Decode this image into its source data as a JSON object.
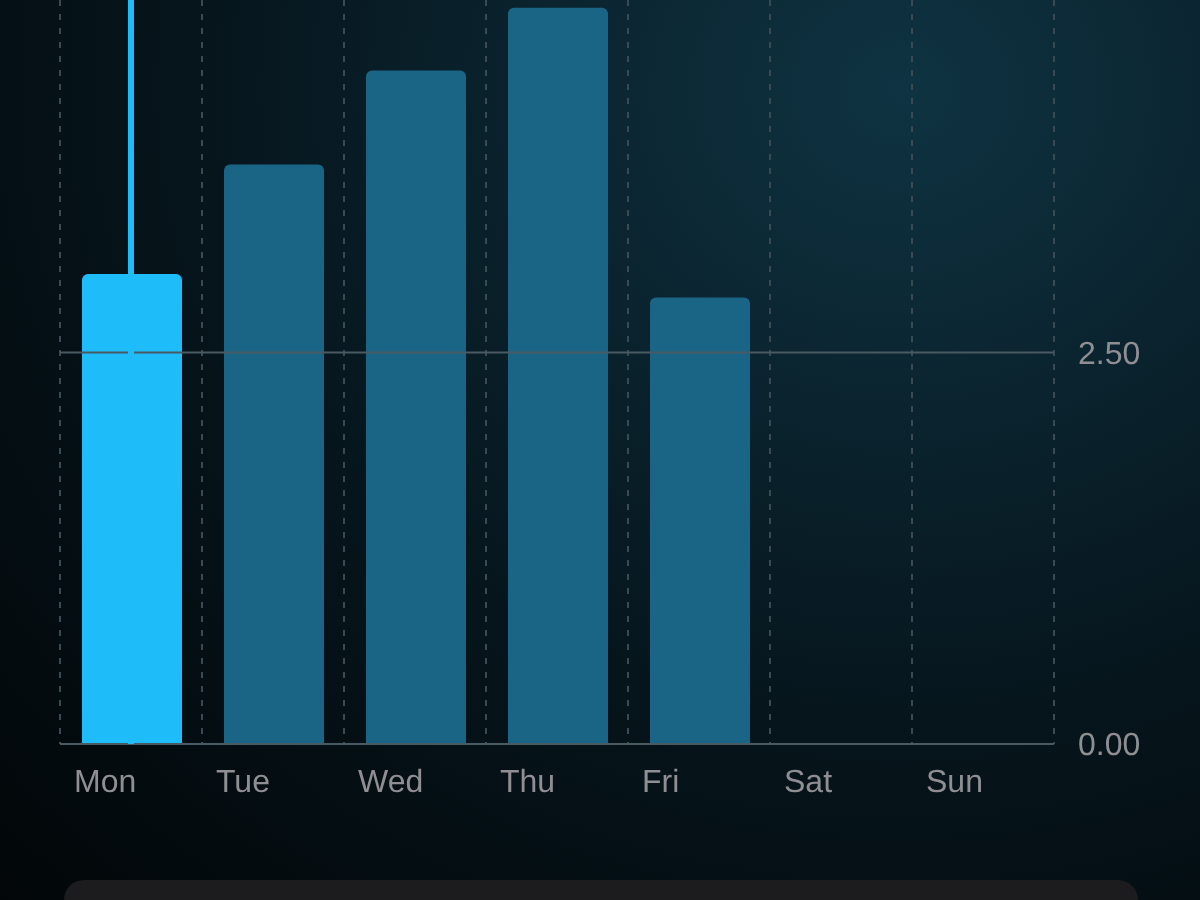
{
  "chart_data": {
    "type": "bar",
    "categories": [
      "Mon",
      "Tue",
      "Wed",
      "Thu",
      "Fri",
      "Sat",
      "Sun"
    ],
    "values": [
      3.0,
      3.7,
      4.3,
      4.7,
      2.85,
      null,
      null
    ],
    "colors": [
      "#1fbcfa",
      "#1a6585",
      "#1a6585",
      "#1a6585",
      "#1a6585",
      "#1a6585",
      "#1a6585"
    ],
    "ylim": [
      0,
      4.75
    ],
    "yticks": [
      {
        "value": 0,
        "label": "0.00"
      },
      {
        "value": 2.5,
        "label": "2.50"
      }
    ],
    "grid": true,
    "legend": false,
    "ref_lines": [
      {
        "axis": "x",
        "value": "Mon",
        "color": "#1fbcfa"
      }
    ]
  }
}
